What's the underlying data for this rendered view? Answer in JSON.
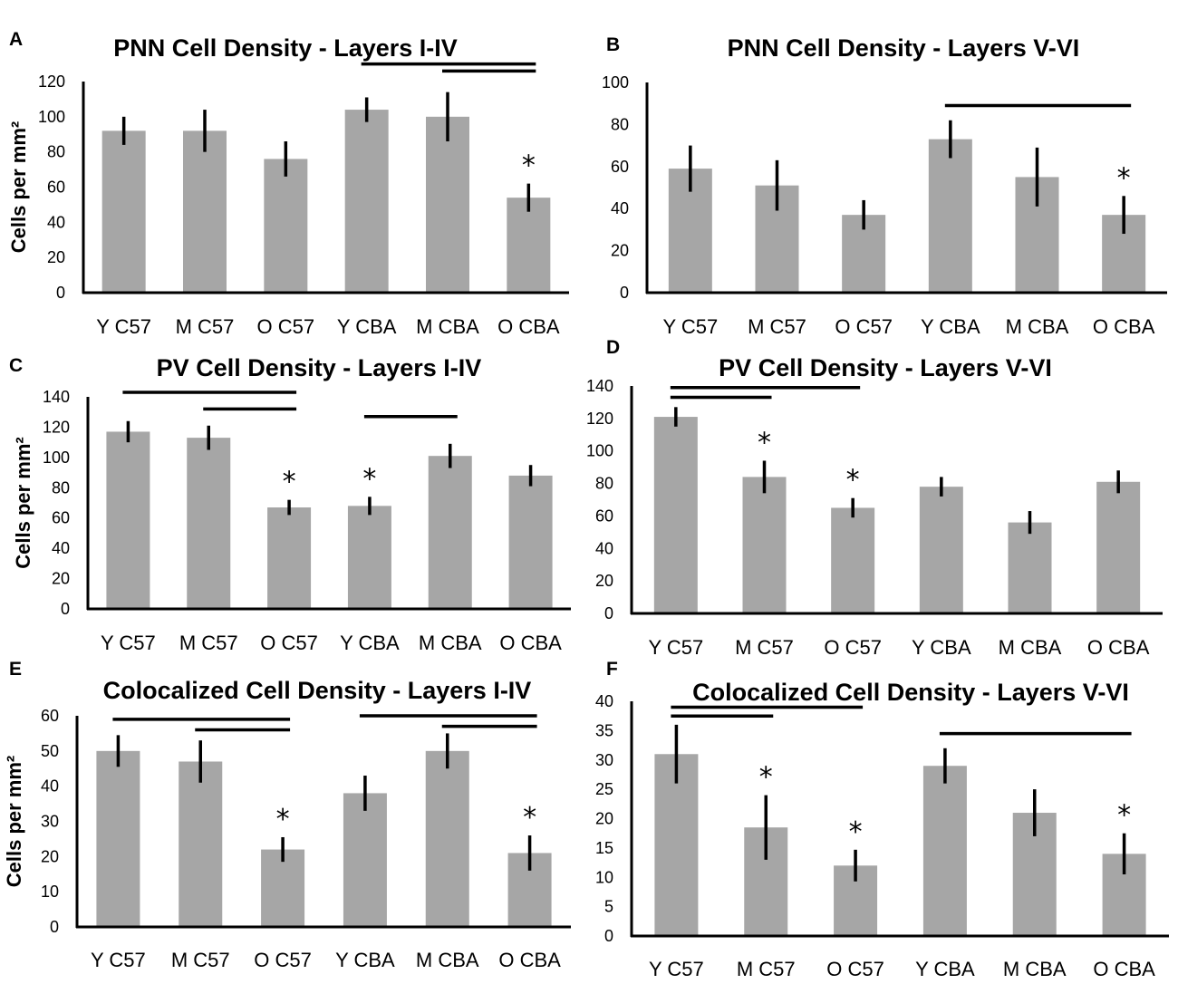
{
  "chart_data": [
    {
      "panel": "A",
      "type": "bar",
      "title": "PNN Cell Density - Layers I-IV",
      "ylabel": "Cells per mm²",
      "xlabel": "",
      "categories": [
        "Y C57",
        "M C57",
        "O C57",
        "Y CBA",
        "M CBA",
        "O CBA"
      ],
      "values": [
        92,
        92,
        76,
        104,
        100,
        54
      ],
      "errors": [
        8,
        12,
        10,
        7,
        14,
        8
      ],
      "ylim": [
        0,
        120
      ],
      "yticks": [
        0,
        20,
        40,
        60,
        80,
        100,
        120
      ],
      "significant": [
        "",
        "",
        "",
        "",
        "",
        "*"
      ],
      "comparisons": [
        {
          "from": 3,
          "to": 5,
          "level": 130
        },
        {
          "from": 4,
          "to": 5,
          "level": 126
        }
      ]
    },
    {
      "panel": "B",
      "type": "bar",
      "title": "PNN Cell Density - Layers V-VI",
      "ylabel": "",
      "xlabel": "",
      "categories": [
        "Y C57",
        "M C57",
        "O C57",
        "Y CBA",
        "M CBA",
        "O CBA"
      ],
      "values": [
        59,
        51,
        37,
        73,
        55,
        37
      ],
      "errors": [
        11,
        12,
        7,
        9,
        14,
        9
      ],
      "ylim": [
        0,
        100
      ],
      "yticks": [
        0,
        20,
        40,
        60,
        80,
        100
      ],
      "significant": [
        "",
        "",
        "",
        "",
        "",
        "*"
      ],
      "comparisons": [
        {
          "from": 3,
          "to": 5,
          "level": 89
        }
      ]
    },
    {
      "panel": "C",
      "type": "bar",
      "title": "PV Cell Density - Layers I-IV",
      "ylabel": "Cells per mm²",
      "xlabel": "",
      "categories": [
        "Y C57",
        "M C57",
        "O C57",
        "Y CBA",
        "M CBA",
        "O CBA"
      ],
      "values": [
        117,
        113,
        67,
        68,
        101,
        88
      ],
      "errors": [
        7,
        8,
        5,
        6,
        8,
        7
      ],
      "ylim": [
        0,
        140
      ],
      "yticks": [
        0,
        20,
        40,
        60,
        80,
        100,
        120,
        140
      ],
      "significant": [
        "",
        "",
        "*",
        "*",
        "",
        ""
      ],
      "comparisons": [
        {
          "from": 0,
          "to": 2,
          "level": 143
        },
        {
          "from": 1,
          "to": 2,
          "level": 132
        },
        {
          "from": 3,
          "to": 4,
          "level": 127
        }
      ]
    },
    {
      "panel": "D",
      "type": "bar",
      "title": "PV Cell Density - Layers V-VI",
      "ylabel": "",
      "xlabel": "",
      "categories": [
        "Y C57",
        "M C57",
        "O C57",
        "Y CBA",
        "M CBA",
        "O CBA"
      ],
      "values": [
        121,
        84,
        65,
        78,
        56,
        81
      ],
      "errors": [
        6,
        10,
        6,
        6,
        7,
        7
      ],
      "ylim": [
        0,
        140
      ],
      "yticks": [
        0,
        20,
        40,
        60,
        80,
        100,
        120,
        140
      ],
      "significant": [
        "",
        "*",
        "*",
        "",
        "",
        ""
      ],
      "comparisons": [
        {
          "from": 0,
          "to": 2,
          "level": 139
        },
        {
          "from": 0,
          "to": 1,
          "level": 133
        }
      ]
    },
    {
      "panel": "E",
      "type": "bar",
      "title": "Colocalized Cell Density - Layers I-IV",
      "ylabel": "Cells per mm²",
      "xlabel": "",
      "categories": [
        "Y C57",
        "M C57",
        "O C57",
        "Y CBA",
        "M CBA",
        "O CBA"
      ],
      "values": [
        50,
        47,
        22,
        38,
        50,
        21
      ],
      "errors": [
        4.5,
        6,
        3.5,
        5,
        5,
        5
      ],
      "ylim": [
        0,
        60
      ],
      "yticks": [
        0,
        10,
        20,
        30,
        40,
        50,
        60
      ],
      "significant": [
        "",
        "",
        "*",
        "",
        "",
        "*"
      ],
      "comparisons": [
        {
          "from": 0,
          "to": 2,
          "level": 59
        },
        {
          "from": 1,
          "to": 2,
          "level": 56
        },
        {
          "from": 3,
          "to": 5,
          "level": 60
        },
        {
          "from": 4,
          "to": 5,
          "level": 57
        }
      ]
    },
    {
      "panel": "F",
      "type": "bar",
      "title": "Colocalized Cell Density - Layers V-VI",
      "ylabel": "",
      "xlabel": "",
      "categories": [
        "Y C57",
        "M C57",
        "O C57",
        "Y CBA",
        "M CBA",
        "O CBA"
      ],
      "values": [
        31,
        18.5,
        12,
        29,
        21,
        14
      ],
      "errors": [
        5,
        5.5,
        2.7,
        3,
        4,
        3.5
      ],
      "ylim": [
        0,
        40
      ],
      "yticks": [
        0,
        5,
        10,
        15,
        20,
        25,
        30,
        35,
        40
      ],
      "significant": [
        "",
        "*",
        "*",
        "",
        "",
        "*"
      ],
      "comparisons": [
        {
          "from": 0,
          "to": 2,
          "level": 39
        },
        {
          "from": 0,
          "to": 1,
          "level": 37.5
        },
        {
          "from": 3,
          "to": 5,
          "level": 34.5
        }
      ]
    }
  ],
  "colors": {
    "bar": "#a6a6a6",
    "error": "#000000",
    "axis": "#000000",
    "text": "#000000"
  }
}
